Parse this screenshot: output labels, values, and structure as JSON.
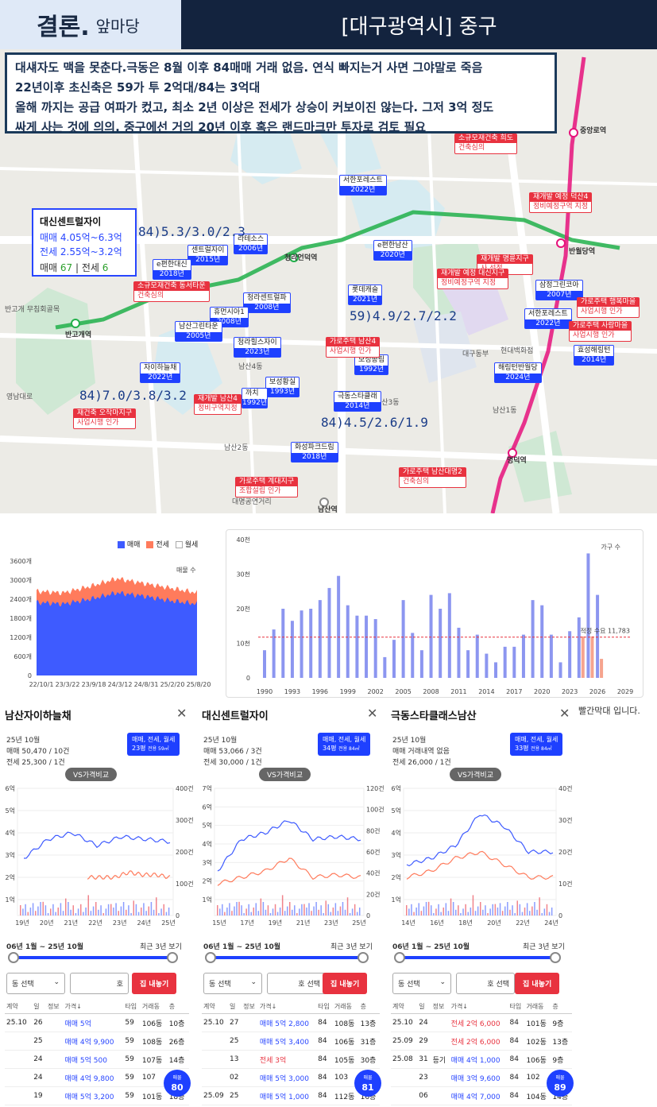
{
  "header": {
    "conclusion": "결론.",
    "subtitle": "앞마당",
    "region": "[대구광역시] 중구"
  },
  "note": {
    "line1": "대섀자도 맥을 못춘다.극동은 8월 이후 84매매 거래 없음. 연식 빠지는거 사면 그야말로 죽음",
    "line2": "22년이후 초신축은 59가 투 2억대/84는 3억대",
    "line3": "올해 까지는 공급 여파가 컸고, 최소 2년 이상은 전세가 상승이 커보이진 않는다. 그저 3억 정도",
    "line4": "싸게 사는 것에 의의. 중구에선 거의 20년 이후 혹은 랜드마크만 투자로 검토 필요"
  },
  "map": {
    "infocard": {
      "name": "대신센트럴자이",
      "sale": "매매 4.05억~6.3억",
      "jeonse": "전세 2.55억~3.2억",
      "count_sale_label": "매매",
      "count_sale": "67",
      "count_jeonse_label": "전세",
      "count_jeonse": "6"
    },
    "prices": [
      "84)5.3/3.0/2.3",
      "59)4.9/2.7/2.2",
      "84)7.0/3.8/3.2",
      "84)4.5/2.6/1.9"
    ],
    "complexes": [
      {
        "name": "서한포레스트",
        "year": "2022년"
      },
      {
        "name": "e편한남산",
        "year": "2020년"
      },
      {
        "name": "센트럴자이",
        "year": "2015년"
      },
      {
        "name": "e편한대신",
        "year": "2018년"
      },
      {
        "name": "롯데캐슬",
        "year": "2021년"
      },
      {
        "name": "청라센트럴파",
        "year": "2008년"
      },
      {
        "name": "휴먼시아1",
        "year": "2008년"
      },
      {
        "name": "남산그린타운",
        "year": "2005년"
      },
      {
        "name": "청라힐스자이",
        "year": "2023년"
      },
      {
        "name": "자이하늘채",
        "year": "2022년"
      },
      {
        "name": "보성황실",
        "year": "1993년"
      },
      {
        "name": "까치",
        "year": "1992년"
      },
      {
        "name": "보성송림",
        "year": "1992년"
      },
      {
        "name": "극동스타클래",
        "year": "2014년"
      },
      {
        "name": "화성파크드림",
        "year": "2018년"
      },
      {
        "name": "삼정그린코아",
        "year": "2007년"
      },
      {
        "name": "서한포레스트",
        "year": "2022년"
      },
      {
        "name": "해링턴반월당",
        "year": "2024년"
      },
      {
        "name": "효성해링턴",
        "year": "2014년"
      },
      {
        "name": "라테소스",
        "year": "2006년"
      }
    ],
    "red_labels": [
      {
        "title": "소규모재건축 희도",
        "body": "건축심의"
      },
      {
        "title": "재개발 예정 덕산4",
        "body": "정비예정구역 지정"
      },
      {
        "title": "소규모재건축 동서타운",
        "body": "건축심의"
      },
      {
        "title": "재개발 명륜지구",
        "body": "사 선정"
      },
      {
        "title": "재개발 예정 대신지구",
        "body": "정비예정구역 지정"
      },
      {
        "title": "가로주택 행복마을",
        "body": "사업시행 인가"
      },
      {
        "title": "가로주택 사랑마을",
        "body": "사업시행 인가"
      },
      {
        "title": "가로주택 남산4",
        "body": "사업시행 인가"
      },
      {
        "title": "재개발 남산4",
        "body": "정비구역지정"
      },
      {
        "title": "재건축 오작마지구",
        "body": "사업시행 인가"
      },
      {
        "title": "가로주택 계대지구",
        "body": "조합설립 인가"
      },
      {
        "title": "가로주택 남산대명2",
        "body": "건축심의"
      }
    ],
    "stations": [
      "반고개역",
      "청라언덕역",
      "반월당역",
      "명덕역",
      "중앙로역",
      "남산역"
    ],
    "places": [
      "남산4동",
      "남산3동",
      "남산1동",
      "대구동부",
      "현대백화점",
      "반고개 무침회골목",
      "영남대로",
      "대명공연거리",
      "남산2동"
    ]
  },
  "stock_chart": {
    "legend": [
      "매매",
      "전세",
      "월세"
    ],
    "label": "매물 수",
    "yticks": [
      "3600개",
      "3000개",
      "2400개",
      "1800개",
      "1200개",
      "600개",
      "0"
    ],
    "xticks": [
      "22/10/1",
      "23/3/22",
      "23/9/18",
      "24/3/12",
      "24/8/31",
      "25/2/20",
      "25/8/20"
    ]
  },
  "chart_data": [
    {
      "type": "area",
      "title": "",
      "series": [
        {
          "name": "매매"
        },
        {
          "name": "전세"
        },
        {
          "name": "월세"
        }
      ],
      "ylim": [
        0,
        3600
      ],
      "x": [
        "22/10/1",
        "23/3/22",
        "23/9/18",
        "24/3/12",
        "24/8/31",
        "25/2/20",
        "25/8/20"
      ],
      "sale": [
        2300,
        2250,
        2400,
        2600,
        2500,
        2350,
        2250
      ],
      "total": [
        2650,
        2600,
        2800,
        3050,
        2900,
        2750,
        2600
      ]
    },
    {
      "type": "bar",
      "title": "가구 수",
      "ylim": [
        0,
        40000
      ],
      "yticks": [
        "40천",
        "30천",
        "20천",
        "10천",
        "0"
      ],
      "xticks": [
        "1990",
        "1993",
        "1996",
        "1999",
        "2002",
        "2005",
        "2008",
        "2011",
        "2014",
        "2017",
        "2020",
        "2023",
        "2026",
        "2029"
      ],
      "reference_label": "적정 수요 11,783",
      "reference": 11783,
      "x": [
        1990,
        1991,
        1992,
        1993,
        1994,
        1995,
        1996,
        1997,
        1998,
        1999,
        2000,
        2001,
        2002,
        2003,
        2004,
        2005,
        2006,
        2007,
        2008,
        2009,
        2010,
        2011,
        2012,
        2013,
        2014,
        2015,
        2016,
        2017,
        2018,
        2019,
        2020,
        2021,
        2022,
        2023,
        2024,
        2025,
        2026
      ],
      "values": [
        8000,
        14000,
        20000,
        16500,
        19500,
        20000,
        22500,
        26000,
        29500,
        21000,
        18000,
        18000,
        17000,
        6000,
        11000,
        22500,
        13000,
        8000,
        24000,
        20000,
        24500,
        14500,
        8000,
        12500,
        7000,
        4500,
        9000,
        9000,
        12500,
        22500,
        21000,
        12500,
        4500,
        13500,
        17500,
        36000,
        24000
      ],
      "forecast_x": [
        2024,
        2025,
        2026
      ],
      "forecast_values": [
        12000,
        12000,
        5500
      ]
    }
  ],
  "panels": [
    {
      "title": "남산자이하늘채",
      "date": "25년 10월",
      "sale": "매매 50,470 / 10건",
      "jeonse": "전세 25,300 / 1건",
      "btn_line1": "매매, 전세, 월세",
      "btn_line2": "23평",
      "btn_line3": "전용 59㎡",
      "vs": "VS가격비교",
      "left_ticks": [
        "6억",
        "5억",
        "4억",
        "3억",
        "2억",
        "1억"
      ],
      "right_ticks": [
        "400건",
        "300건",
        "200건",
        "100건",
        "0"
      ],
      "xticks": [
        "19년",
        "20년",
        "21년",
        "22년",
        "23년",
        "24년",
        "25년"
      ],
      "range": "06년 1월 ~ 25년 10월",
      "recent": "최근 3년 보기",
      "sel1": "동 선택",
      "sel2": "호",
      "btn": "집 내놓기",
      "headers": [
        "계약",
        "일",
        "정보",
        "가격↓",
        "타입",
        "거래동",
        "층"
      ],
      "rows": [
        [
          "25.10",
          "26",
          "",
          "매매 5억",
          "59",
          "106동",
          "10층"
        ],
        [
          "",
          "25",
          "",
          "매매 4억 9,900",
          "59",
          "108동",
          "26층"
        ],
        [
          "",
          "24",
          "",
          "매매 5억 500",
          "59",
          "107동",
          "14층"
        ],
        [
          "",
          "24",
          "",
          "매매 4억 9,800",
          "59",
          "107",
          ""
        ],
        [
          "",
          "19",
          "",
          "매매 5억 3,200",
          "59",
          "101동",
          "18층"
        ]
      ],
      "badge_label": "매물",
      "badge_count": "80"
    },
    {
      "title": "대신센트럴자이",
      "date": "25년 10월",
      "sale": "매매 53,066 / 3건",
      "jeonse": "전세 30,000 / 1건",
      "btn_line1": "매매, 전세, 월세",
      "btn_line2": "34평",
      "btn_line3": "전용 84㎡",
      "vs": "VS가격비교",
      "left_ticks": [
        "7억",
        "6억",
        "5억",
        "4억",
        "3억",
        "2억",
        "1억"
      ],
      "right_ticks": [
        "120건",
        "100건",
        "80건",
        "60건",
        "40건",
        "20건",
        "0"
      ],
      "xticks": [
        "15년",
        "17년",
        "19년",
        "21년",
        "23년",
        "25년"
      ],
      "range": "06년 1월 ~ 25년 10월",
      "recent": "최근 3년 보기",
      "sel1": "동 선택",
      "sel2": "호 선택",
      "btn": "집 내놓기",
      "headers": [
        "계약",
        "일",
        "정보",
        "가격↓",
        "타입",
        "거래동",
        "층"
      ],
      "rows": [
        [
          "25.10",
          "27",
          "",
          "매매 5억 2,800",
          "84",
          "108동",
          "13층"
        ],
        [
          "",
          "25",
          "",
          "매매 5억 3,400",
          "84",
          "106동",
          "31층"
        ],
        [
          "",
          "13",
          "",
          "전세 3억",
          "84",
          "105동",
          "30층"
        ],
        [
          "",
          "02",
          "",
          "매매 5억 3,000",
          "84",
          "103",
          ""
        ],
        [
          "25.09",
          "25",
          "",
          "매매 5억 1,000",
          "84",
          "112동",
          "16층"
        ]
      ],
      "badge_label": "매물",
      "badge_count": "81"
    },
    {
      "title": "극동스타클래스남산",
      "date": "25년 10월",
      "sale": "매매 거래내역 없음",
      "jeonse": "전세 26,000 / 1건",
      "btn_line1": "매매, 전세, 월세",
      "btn_line2": "33평",
      "btn_line3": "전용 84㎡",
      "vs": "VS가격비교",
      "left_ticks": [
        "6억",
        "5억",
        "4억",
        "3억",
        "2억",
        "1억"
      ],
      "right_ticks": [
        "40건",
        "30건",
        "20건",
        "10건",
        "0"
      ],
      "xticks": [
        "14년",
        "16년",
        "18년",
        "20년",
        "22년",
        "24년"
      ],
      "range": "06년 1월 ~ 25년 10월",
      "recent": "최근 3년 보기",
      "sel1": "동 선택",
      "sel2": "호 선택",
      "btn": "집 내놓기",
      "headers": [
        "계약",
        "일",
        "정보",
        "가격↓",
        "타입",
        "거래동",
        "층"
      ],
      "rows": [
        [
          "25.10",
          "24",
          "",
          "전세 2억 6,000",
          "84",
          "101동",
          "9층"
        ],
        [
          "25.09",
          "29",
          "",
          "전세 2억 6,000",
          "84",
          "102동",
          "13층"
        ],
        [
          "25.08",
          "31",
          "등기",
          "매매 4억 1,000",
          "84",
          "106동",
          "9층"
        ],
        [
          "",
          "23",
          "",
          "매매 3억 9,600",
          "84",
          "102",
          ""
        ],
        [
          "",
          "06",
          "",
          "매매 4억 7,000",
          "84",
          "104동",
          "14층"
        ]
      ],
      "badge_label": "매물",
      "badge_count": "89"
    }
  ],
  "footnote": "빨간막대 입니다."
}
